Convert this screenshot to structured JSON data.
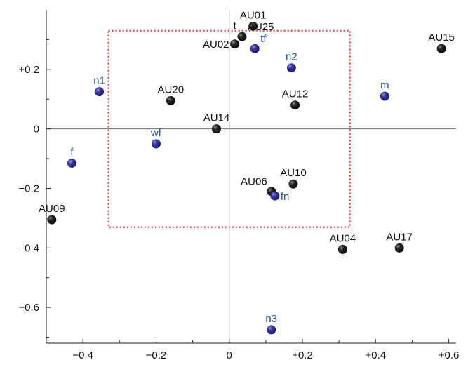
{
  "chart_data": {
    "type": "scatter",
    "title": "",
    "xlabel": "",
    "ylabel": "",
    "xlim": [
      -0.5,
      0.62
    ],
    "ylim": [
      -0.72,
      0.4
    ],
    "grid": false,
    "x_ticks": [
      {
        "value": -0.4,
        "label": "−0.4"
      },
      {
        "value": -0.2,
        "label": "−0.2"
      },
      {
        "value": 0,
        "label": "0"
      },
      {
        "value": 0.2,
        "label": "+0.2"
      },
      {
        "value": 0.4,
        "label": "+0.4"
      },
      {
        "value": 0.6,
        "label": "+0.6"
      }
    ],
    "y_ticks": [
      {
        "value": 0.2,
        "label": "+0.2"
      },
      {
        "value": 0,
        "label": "0"
      },
      {
        "value": -0.2,
        "label": "−0.2"
      },
      {
        "value": -0.4,
        "label": "−0.4"
      },
      {
        "value": -0.6,
        "label": "−0.6"
      }
    ],
    "region": {
      "x": [
        -0.33,
        0.33
      ],
      "y": [
        -0.33,
        0.33
      ],
      "color": "#e0302a",
      "style": "dotted"
    },
    "colors": {
      "black_point": "#141414",
      "blue_point": "#2e2d8c",
      "black_label": "#111111",
      "blue_label": "#1f4f8f"
    },
    "series": [
      {
        "color_key": "black",
        "points": [
          {
            "label": "AU01",
            "x": 0.065,
            "y": 0.345,
            "anchor": "top"
          },
          {
            "label": "AU25",
            "x": 0.035,
            "y": 0.31,
            "anchor": "upper-right"
          },
          {
            "label": "AU02",
            "x": 0.015,
            "y": 0.285,
            "anchor": "left"
          },
          {
            "label": "AU15",
            "x": 0.58,
            "y": 0.27,
            "anchor": "top"
          },
          {
            "label": "AU20",
            "x": -0.16,
            "y": 0.095,
            "anchor": "top"
          },
          {
            "label": "AU12",
            "x": 0.18,
            "y": 0.08,
            "anchor": "top"
          },
          {
            "label": "AU14",
            "x": -0.035,
            "y": 0.0,
            "anchor": "top"
          },
          {
            "label": "AU10",
            "x": 0.175,
            "y": -0.185,
            "anchor": "top"
          },
          {
            "label": "AU06",
            "x": 0.115,
            "y": -0.21,
            "anchor": "upper-left"
          },
          {
            "label": "AU09",
            "x": -0.485,
            "y": -0.305,
            "anchor": "top"
          },
          {
            "label": "AU04",
            "x": 0.31,
            "y": -0.405,
            "anchor": "top"
          },
          {
            "label": "AU17",
            "x": 0.465,
            "y": -0.4,
            "anchor": "top"
          }
        ]
      },
      {
        "color_key": "blue",
        "points": [
          {
            "label": "tf",
            "x": 0.07,
            "y": 0.27,
            "anchor": "upper-right"
          },
          {
            "label": "n2",
            "x": 0.17,
            "y": 0.205,
            "anchor": "top"
          },
          {
            "label": "n1",
            "x": -0.355,
            "y": 0.125,
            "anchor": "top"
          },
          {
            "label": "m",
            "x": 0.425,
            "y": 0.11,
            "anchor": "top"
          },
          {
            "label": "wf",
            "x": -0.2,
            "y": -0.05,
            "anchor": "top"
          },
          {
            "label": "f",
            "x": -0.43,
            "y": -0.115,
            "anchor": "top"
          },
          {
            "label": "fn",
            "x": 0.125,
            "y": -0.225,
            "anchor": "right"
          },
          {
            "label": "n3",
            "x": 0.115,
            "y": -0.675,
            "anchor": "top"
          }
        ]
      }
    ],
    "extra_labels": [
      {
        "label": "t",
        "x": 0.015,
        "y": 0.335,
        "color_key": "black"
      }
    ]
  }
}
